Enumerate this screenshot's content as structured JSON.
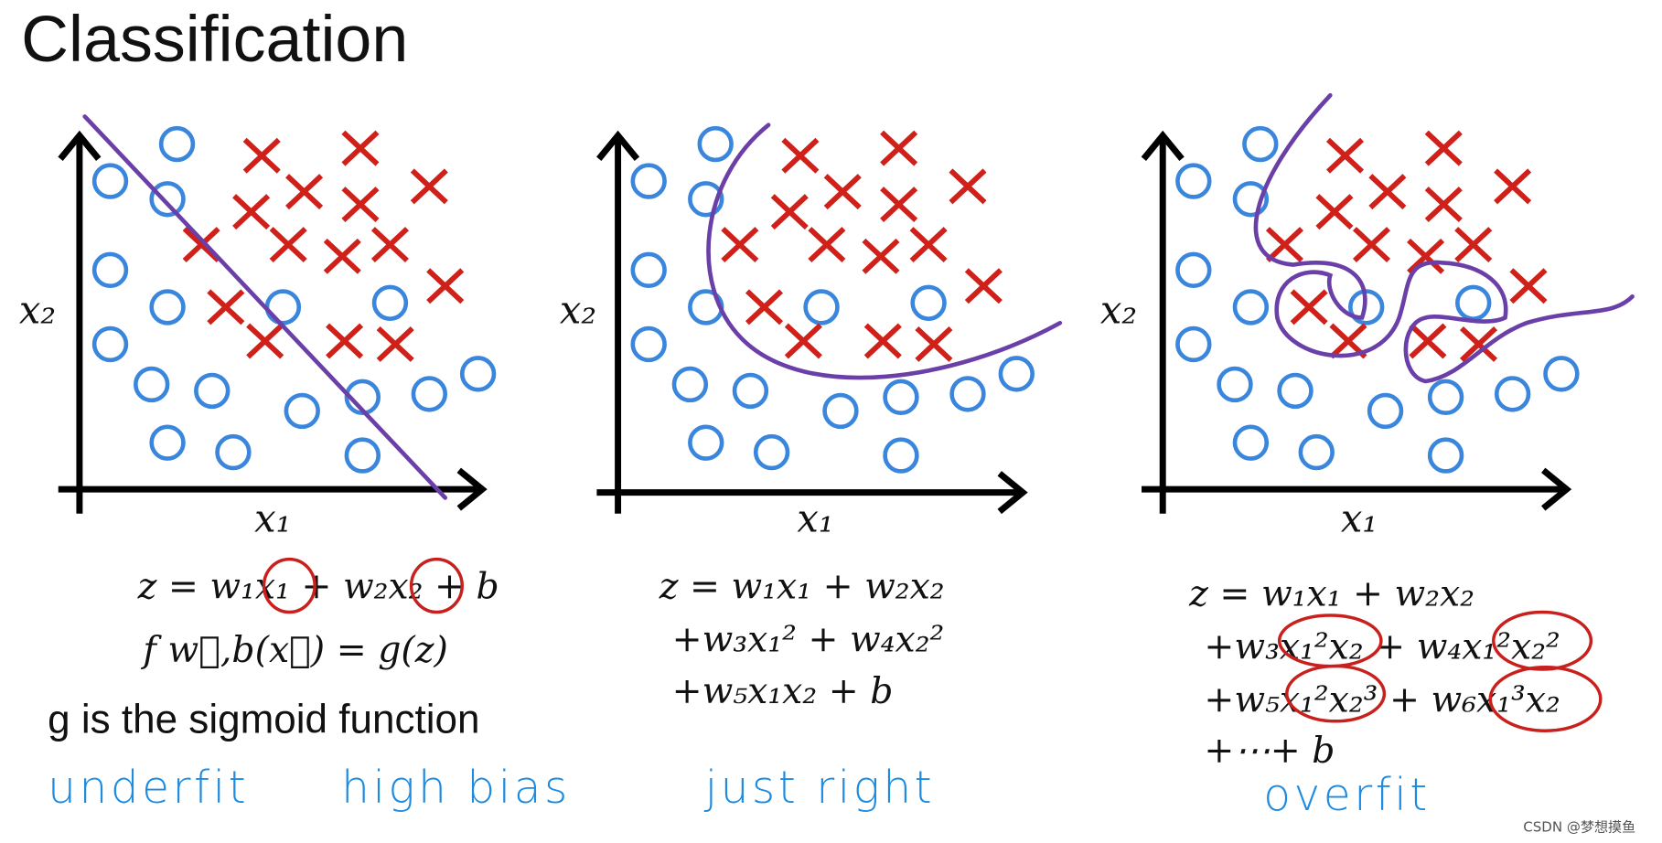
{
  "title": "Classification",
  "panels": [
    {
      "x_label": "x₁",
      "y_label": "x₂",
      "equation": [
        "z = w₁x₁ + w₂x₂ + b",
        "f w⃗,b(x⃗) = g(z)"
      ],
      "note": "g is the sigmoid function",
      "captions": [
        "underfit",
        "high bias"
      ]
    },
    {
      "x_label": "x₁",
      "y_label": "x₂",
      "equation": [
        "z = w₁x₁ + w₂x₂",
        "+w₃x₁² + w₄x₂²",
        "+w₅x₁x₂ + b"
      ],
      "captions": [
        "just right"
      ]
    },
    {
      "x_label": "x₁",
      "y_label": "x₂",
      "equation": [
        "z = w₁x₁ + w₂x₂",
        "+w₃x₁²x₂ + w₄x₁²x₂²",
        "+w₅x₁²x₂³ + w₆x₁³x₂",
        "+⋯+ b"
      ],
      "captions": [
        "overfit"
      ]
    }
  ],
  "watermark": "CSDN @梦想摸鱼"
}
